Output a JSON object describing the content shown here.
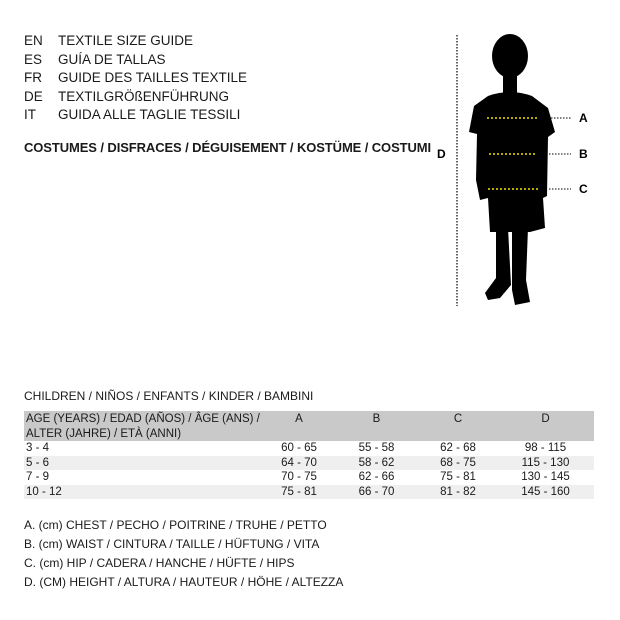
{
  "languages": [
    {
      "code": "EN",
      "title": "TEXTILE SIZE GUIDE"
    },
    {
      "code": "ES",
      "title": "GUÍA DE TALLAS"
    },
    {
      "code": "FR",
      "title": "GUIDE DES TAILLES TEXTILE"
    },
    {
      "code": "DE",
      "title": "TEXTILGRÖßENFÜHRUNG"
    },
    {
      "code": "IT",
      "title": "GUIDA ALLE TAGLIE TESSILI"
    }
  ],
  "subtitle": "COSTUMES / DISFRACES / DÉGUISEMENT / KOSTÜME / COSTUMI",
  "figure": {
    "labels": {
      "a": "A",
      "b": "B",
      "c": "C",
      "d": "D"
    },
    "measure_line_color": "#f5e100"
  },
  "table": {
    "caption": "CHILDREN / NIÑOS / ENFANTS / KINDER / BAMBINI",
    "headers": {
      "age_line1": "AGE (YEARS) / EDAD (AÑOS) / ÂGE (ANS) /",
      "age_line2": "ALTER (JAHRE) / ETÀ (ANNI)",
      "a": "A",
      "b": "B",
      "c": "C",
      "d": "D"
    },
    "rows": [
      [
        "3 - 4",
        "60 - 65",
        "55 - 58",
        "62 - 68",
        "98 - 115"
      ],
      [
        "5 - 6",
        "64 - 70",
        "58 - 62",
        "68 - 75",
        "115 - 130"
      ],
      [
        "7 - 9",
        "70 - 75",
        "62 - 66",
        "75 - 81",
        "130 - 145"
      ],
      [
        "10 - 12",
        "75 - 81",
        "66 - 70",
        "81 - 82",
        "145 - 160"
      ]
    ]
  },
  "legend": [
    "A. (cm) CHEST / PECHO / POITRINE / TRUHE / PETTO",
    "B. (cm) WAIST / CINTURA / TAILLE / HÜFTUNG / VITA",
    "C. (cm) HIP / CADERA / HANCHE / HÜFTE / HIPS",
    "D. (CM) HEIGHT / ALTURA / HAUTEUR / HÖHE / ALTEZZA"
  ]
}
